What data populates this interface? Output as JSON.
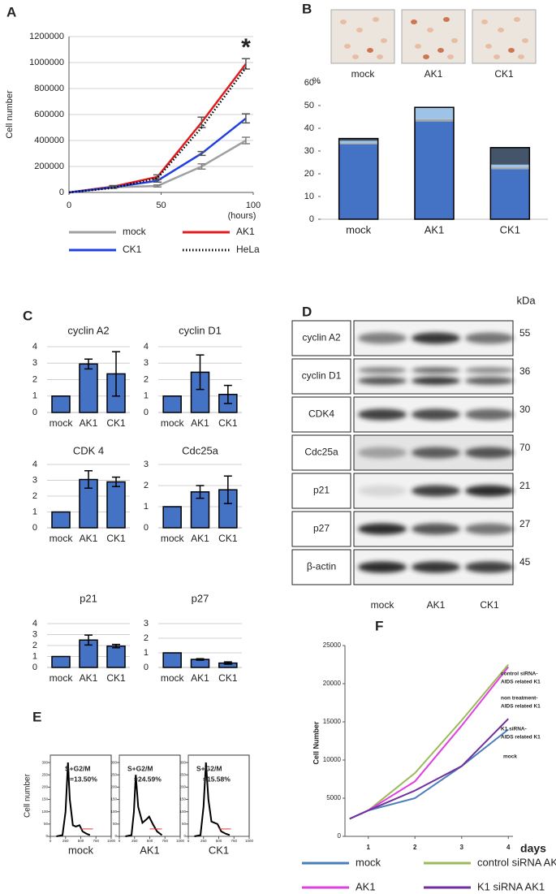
{
  "figure": {
    "panel_letters": [
      "A",
      "B",
      "C",
      "D",
      "E",
      "F"
    ],
    "photo_labels": [
      "mock",
      "AK1",
      "CK1"
    ],
    "blot": {
      "unit": "kDa",
      "lanes": [
        "mock",
        "AK1",
        "CK1"
      ],
      "rows": [
        {
          "label": "cyclin A2",
          "kda": 55
        },
        {
          "label": "cyclin D1",
          "kda": 36
        },
        {
          "label": "CDK4",
          "kda": 30
        },
        {
          "label": "Cdc25a",
          "kda": 70
        },
        {
          "label": "p21",
          "kda": 21
        },
        {
          "label": "p27",
          "kda": 27
        },
        {
          "label": "β-actin",
          "kda": 45
        }
      ]
    }
  },
  "chart_data": [
    {
      "type": "line",
      "ylabel": "Cell number",
      "xunit": "(hours)",
      "annotation": "*",
      "x": [
        0,
        24,
        48,
        72,
        96
      ],
      "xlim": [
        0,
        100
      ],
      "ylim": [
        0,
        1200000
      ],
      "xticks": [
        0,
        50,
        100
      ],
      "yticks": [
        0,
        200000,
        400000,
        600000,
        800000,
        1000000,
        1200000
      ],
      "grid": true,
      "legend": "bottom",
      "series": [
        {
          "name": "mock",
          "color": "#a0a0a0",
          "values": [
            0,
            40000,
            50000,
            200000,
            400000
          ],
          "errors": [
            0,
            8000,
            8000,
            20000,
            25000
          ]
        },
        {
          "name": "AK1",
          "color": "#e41a1c",
          "values": [
            0,
            45000,
            120000,
            540000,
            990000
          ],
          "errors": [
            0,
            8000,
            15000,
            40000,
            40000
          ]
        },
        {
          "name": "CK1",
          "color": "#1f3fe0",
          "values": [
            0,
            40000,
            90000,
            300000,
            570000
          ],
          "errors": [
            0,
            8000,
            10000,
            15000,
            35000
          ]
        },
        {
          "name": "HeLa",
          "color": "#000000",
          "dash": "dotted",
          "values": [
            0,
            35000,
            110000,
            500000,
            960000
          ]
        }
      ]
    },
    {
      "type": "stacked_bar",
      "ylabel": "%",
      "categories": [
        "mock",
        "AK1",
        "CK1"
      ],
      "ylim": [
        0,
        60
      ],
      "yticks": [
        0,
        10,
        20,
        30,
        40,
        50,
        60
      ],
      "grid": false,
      "series": [
        {
          "color": "#4472c4",
          "values": [
            33,
            43,
            22
          ]
        },
        {
          "color": "#a5a5a5",
          "values": [
            0.5,
            1,
            0.8
          ]
        },
        {
          "color": "#9dc3e6",
          "values": [
            1,
            5,
            1.2
          ]
        },
        {
          "color": "#44546a",
          "values": [
            1,
            0.2,
            7.5
          ]
        }
      ]
    },
    {
      "type": "bar",
      "title": "cyclin A2",
      "categories": [
        "mock",
        "AK1",
        "CK1"
      ],
      "values": [
        1,
        2.95,
        2.35
      ],
      "errors": [
        0,
        0.3,
        1.35
      ],
      "color": "#4472c4",
      "ylim": [
        0,
        4
      ],
      "yticks": [
        0,
        1,
        2,
        3,
        4
      ],
      "grid": true
    },
    {
      "type": "bar",
      "title": "cyclin D1",
      "categories": [
        "mock",
        "AK1",
        "CK1"
      ],
      "values": [
        1,
        2.45,
        1.1
      ],
      "errors": [
        0,
        1.05,
        0.55
      ],
      "color": "#4472c4",
      "ylim": [
        0,
        4
      ],
      "yticks": [
        0,
        1,
        2,
        3,
        4
      ],
      "grid": true
    },
    {
      "type": "bar",
      "title": "CDK 4",
      "categories": [
        "mock",
        "AK1",
        "CK1"
      ],
      "values": [
        1,
        3.05,
        2.9
      ],
      "errors": [
        0,
        0.55,
        0.3
      ],
      "color": "#4472c4",
      "ylim": [
        0,
        4
      ],
      "yticks": [
        0,
        1,
        2,
        3,
        4
      ],
      "grid": true
    },
    {
      "type": "bar",
      "title": "Cdc25a",
      "categories": [
        "mock",
        "AK1",
        "CK1"
      ],
      "values": [
        1,
        1.7,
        1.8
      ],
      "errors": [
        0,
        0.3,
        0.65
      ],
      "color": "#4472c4",
      "ylim": [
        0,
        3
      ],
      "yticks": [
        0,
        1,
        2,
        3
      ],
      "grid": true
    },
    {
      "type": "bar",
      "title": "p21",
      "categories": [
        "mock",
        "AK1",
        "CK1"
      ],
      "values": [
        1,
        2.5,
        1.95
      ],
      "errors": [
        0,
        0.45,
        0.15
      ],
      "color": "#4472c4",
      "ylim": [
        0,
        4
      ],
      "yticks": [
        0,
        1,
        2,
        3,
        4
      ],
      "grid": true
    },
    {
      "type": "bar",
      "title": "p27",
      "categories": [
        "mock",
        "AK1",
        "CK1"
      ],
      "values": [
        1,
        0.55,
        0.3
      ],
      "errors": [
        0,
        0.05,
        0.08
      ],
      "color": "#4472c4",
      "ylim": [
        0,
        3
      ],
      "yticks": [
        0,
        1,
        2,
        3
      ],
      "grid": true
    },
    {
      "type": "line",
      "label": "mock",
      "ylabel": "Cell number",
      "annotations": [
        "S+G2/M",
        "=13.50%"
      ],
      "frame": true,
      "x": [
        100,
        200,
        250,
        290,
        320,
        370,
        420,
        480,
        530,
        600,
        650
      ],
      "xlim": [
        0,
        1000
      ],
      "ylim": [
        0,
        330
      ],
      "xticks": [
        0,
        250,
        500,
        750,
        1000
      ],
      "yticks": [
        0,
        50,
        100,
        150,
        200,
        250,
        300
      ],
      "series": [
        {
          "color": "#000000",
          "values": [
            0,
            5,
            100,
            300,
            150,
            45,
            40,
            45,
            20,
            10,
            5
          ]
        }
      ]
    },
    {
      "type": "line",
      "label": "AK1",
      "annotations": [
        "S+G2/M",
        "=24.59%"
      ],
      "frame": true,
      "x": [
        100,
        200,
        240,
        270,
        310,
        380,
        450,
        490,
        550,
        620,
        700
      ],
      "xlim": [
        0,
        1000
      ],
      "ylim": [
        0,
        330
      ],
      "xticks": [
        0,
        250,
        500,
        750,
        1000
      ],
      "yticks": [
        0,
        50,
        100,
        150,
        200,
        250,
        300
      ],
      "series": [
        {
          "color": "#000000",
          "values": [
            0,
            5,
            100,
            250,
            120,
            55,
            70,
            80,
            50,
            20,
            5
          ]
        }
      ]
    },
    {
      "type": "line",
      "label": "CK1",
      "annotations": [
        "S+G2/M",
        "=15.58%"
      ],
      "frame": true,
      "x": [
        100,
        200,
        250,
        290,
        330,
        380,
        430,
        480,
        540,
        620,
        680
      ],
      "xlim": [
        0,
        1000
      ],
      "ylim": [
        0,
        330
      ],
      "xticks": [
        0,
        250,
        500,
        750,
        1000
      ],
      "yticks": [
        0,
        50,
        100,
        150,
        200,
        250,
        300
      ],
      "series": [
        {
          "color": "#000000",
          "values": [
            0,
            5,
            120,
            300,
            150,
            60,
            55,
            50,
            20,
            10,
            5
          ]
        }
      ]
    },
    {
      "type": "line",
      "ylabel": "Cell  Number",
      "xunit": "days",
      "legend": "bottom",
      "annotations": [
        "control siRNA-",
        "AIDS related K1",
        "non treatment-",
        "AIDS related K1",
        "K1 siRNA-",
        "AIDS related K1",
        "mock"
      ],
      "x": [
        0.6,
        1,
        2,
        3,
        4
      ],
      "xlim": [
        0.5,
        4.1
      ],
      "ylim": [
        0,
        25000
      ],
      "xticks": [
        1,
        2,
        3,
        4
      ],
      "yticks": [
        0,
        5000,
        10000,
        15000,
        20000,
        25000
      ],
      "grid": false,
      "series": [
        {
          "name": "mock",
          "color": "#4a7ebb",
          "values": [
            2300,
            3400,
            5000,
            9200,
            14000
          ]
        },
        {
          "name": "control siRNA AK1",
          "color": "#9bbb59",
          "values": [
            2300,
            3400,
            8300,
            15200,
            22500
          ]
        },
        {
          "name": "AK1",
          "color": "#e040e0",
          "values": [
            2300,
            3400,
            7200,
            14500,
            22200
          ]
        },
        {
          "name": "K1 siRNA AK1",
          "color": "#7030a0",
          "values": [
            2300,
            3400,
            6000,
            9200,
            15400
          ]
        }
      ]
    }
  ]
}
